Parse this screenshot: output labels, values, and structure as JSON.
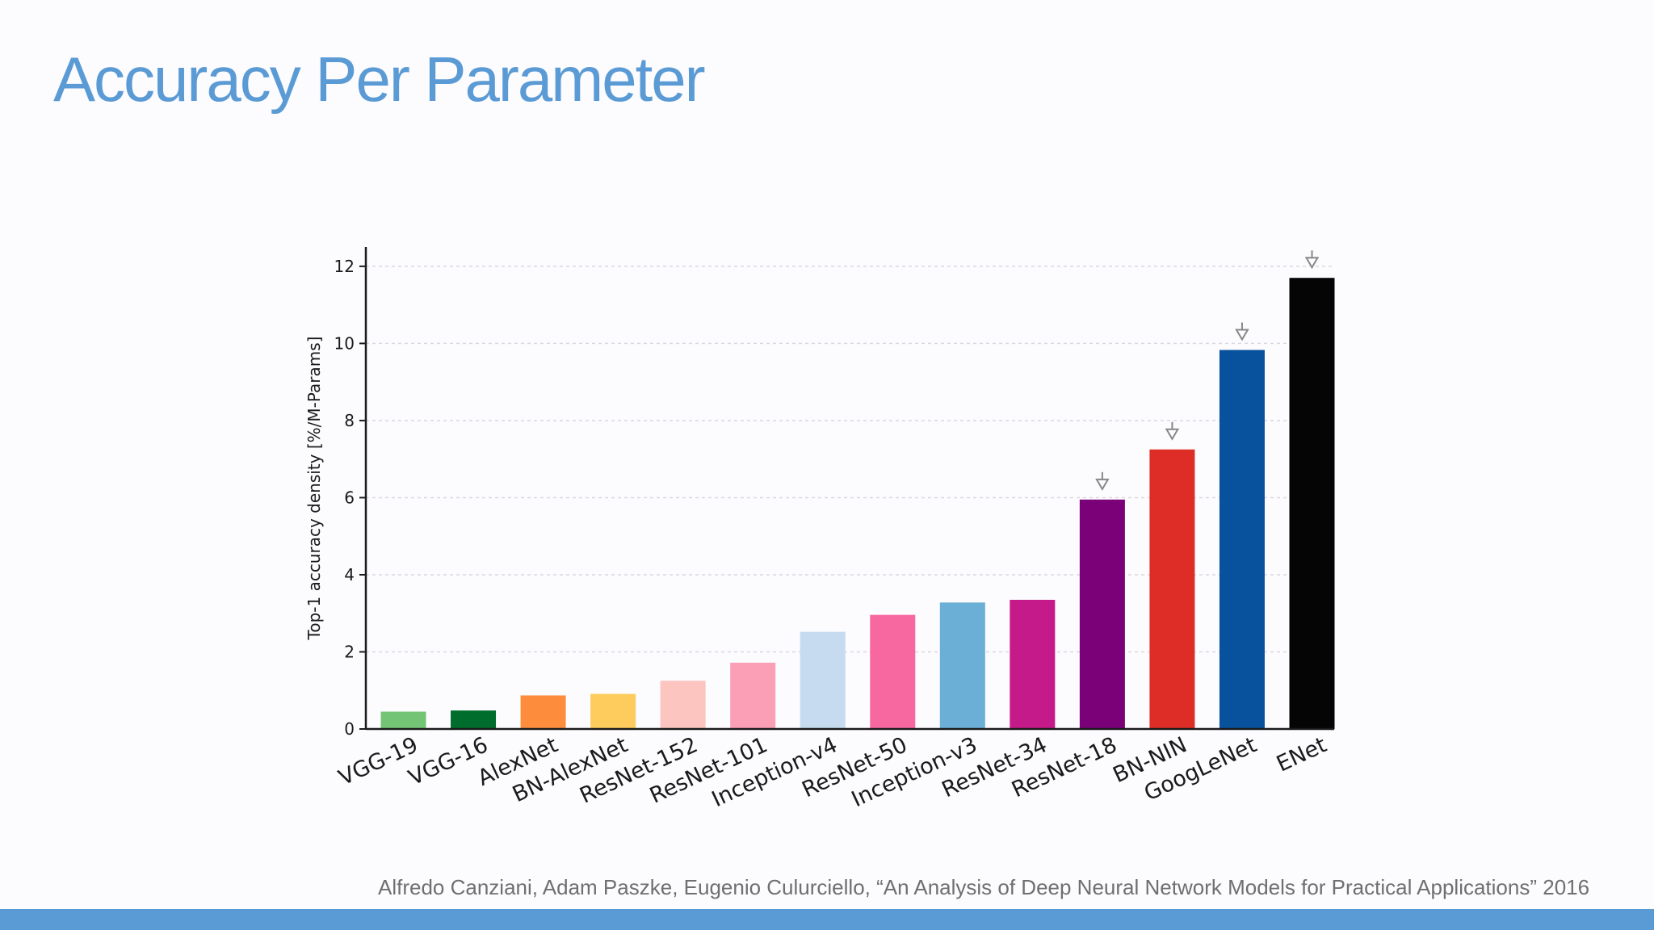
{
  "slide": {
    "title": "Accuracy Per Parameter",
    "citation": "Alfredo Canziani, Adam Paszke, Eugenio Culurciello, “An Analysis of Deep Neural Network Models for Practical Applications” 2016"
  },
  "colors": {
    "title": "#5b9bd5",
    "accent_bar": "#5b9bd5",
    "background": "#fcfbfd",
    "grid": "#dcd7e0",
    "axis": "#1a1a1a",
    "marker": "#888888"
  },
  "chart_data": {
    "type": "bar",
    "title": "",
    "xlabel": "",
    "ylabel": "Top-1 accuracy density [%/M-Params]",
    "ylim": [
      0,
      12.5
    ],
    "yticks": [
      0,
      2,
      4,
      6,
      8,
      10,
      12
    ],
    "grid": true,
    "categories": [
      "VGG-19",
      "VGG-16",
      "AlexNet",
      "BN-AlexNet",
      "ResNet-152",
      "ResNet-101",
      "Inception-v4",
      "ResNet-50",
      "Inception-v3",
      "ResNet-34",
      "ResNet-18",
      "BN-NIN",
      "GoogLeNet",
      "ENet"
    ],
    "values": [
      0.45,
      0.48,
      0.87,
      0.91,
      1.25,
      1.72,
      2.52,
      2.96,
      3.28,
      3.35,
      5.95,
      7.25,
      9.83,
      11.7
    ],
    "bar_colors": [
      "#74c476",
      "#006d2c",
      "#fd8d3c",
      "#fecc5c",
      "#fcc5c0",
      "#fa9fb5",
      "#c6dbef",
      "#f768a1",
      "#6baed6",
      "#c51b8a",
      "#7a0177",
      "#de2d26",
      "#08519c",
      "#050505"
    ],
    "markers": [
      false,
      false,
      false,
      false,
      false,
      false,
      false,
      false,
      false,
      false,
      true,
      true,
      true,
      true
    ]
  }
}
